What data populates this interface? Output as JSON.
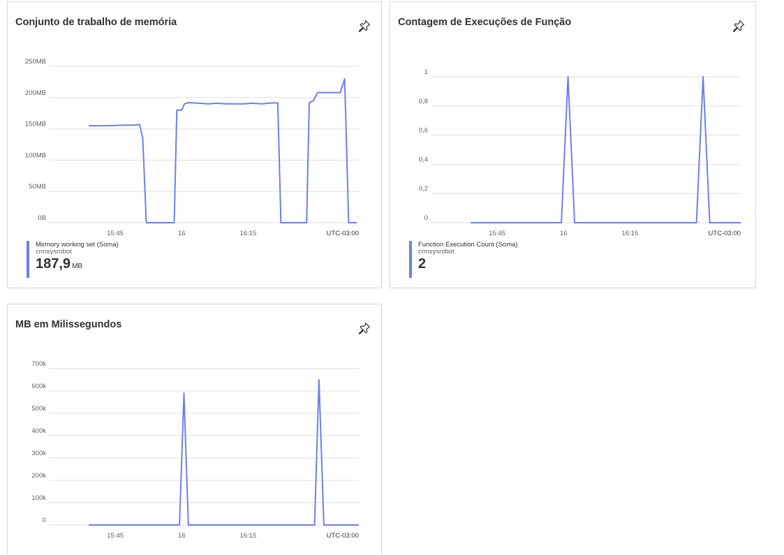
{
  "accent_color": "#6b7ff0",
  "pin_icon": "pin-icon",
  "tiles": [
    {
      "title": "Conjunto de trabalho de memória",
      "legend": {
        "series": "Memory working set (Soma)",
        "resource": "crmsysrobot",
        "value": "187,9",
        "unit": "MB"
      }
    },
    {
      "title": "Contagem de Execuções de Função",
      "legend": {
        "series": "Function Execution Count (Soma)",
        "resource": "crmsysrobot",
        "value": "2",
        "unit": ""
      }
    },
    {
      "title": "MB em Milissegundos"
    }
  ],
  "chart_data": [
    {
      "type": "line",
      "title": "Conjunto de trabalho de memória",
      "x_unit": "minutes since 15:30 (UTC-03:00)",
      "x_ticks": [
        15,
        30,
        45
      ],
      "x_tick_labels": [
        "15:45",
        "16",
        "16:15"
      ],
      "x_axis_note": "UTC-03:00",
      "ylim": [
        0,
        250
      ],
      "y_ticks": [
        0,
        50,
        100,
        150,
        200,
        250
      ],
      "y_tick_labels": [
        "0B",
        "50MB",
        "100MB",
        "150MB",
        "200MB",
        "250MB"
      ],
      "series": [
        {
          "name": "Memory working set (Soma)",
          "points": [
            [
              9,
              155
            ],
            [
              11,
              155
            ],
            [
              13,
              155
            ],
            [
              15,
              155.5
            ],
            [
              17,
              156
            ],
            [
              19,
              156
            ],
            [
              20.5,
              157
            ],
            [
              21.2,
              135
            ],
            [
              22,
              0
            ],
            [
              28.3,
              0
            ],
            [
              28.9,
              180
            ],
            [
              30,
              180
            ],
            [
              30.6,
              190
            ],
            [
              31.6,
              192
            ],
            [
              34,
              191
            ],
            [
              36,
              190
            ],
            [
              38,
              191
            ],
            [
              40,
              190
            ],
            [
              42,
              190
            ],
            [
              44,
              190
            ],
            [
              46,
              191
            ],
            [
              48,
              190
            ],
            [
              49.5,
              191
            ],
            [
              50.7,
              191.5
            ],
            [
              51.7,
              191.5
            ],
            [
              52.4,
              0
            ],
            [
              58.2,
              0
            ],
            [
              58.8,
              192
            ],
            [
              59.7,
              195
            ],
            [
              60.7,
              208
            ],
            [
              63,
              208
            ],
            [
              65.8,
              208
            ],
            [
              66.8,
              230
            ],
            [
              67.7,
              0
            ],
            [
              69.5,
              0
            ]
          ]
        }
      ]
    },
    {
      "type": "line",
      "title": "Contagem de Execuções de Função",
      "x_unit": "minutes since 15:30 (UTC-03:00)",
      "x_ticks": [
        15,
        30,
        45
      ],
      "x_tick_labels": [
        "15:45",
        "16",
        "16:15"
      ],
      "x_axis_note": "UTC-03:00",
      "ylim": [
        0,
        1
      ],
      "y_ticks": [
        0,
        0.2,
        0.4,
        0.6,
        0.8,
        1
      ],
      "y_tick_labels": [
        "0",
        "0,2",
        "0,4",
        "0,6",
        "0,8",
        "1"
      ],
      "series": [
        {
          "name": "Function Execution Count (Soma)",
          "points": [
            [
              9,
              0
            ],
            [
              29.5,
              0
            ],
            [
              31,
              1
            ],
            [
              32.5,
              0
            ],
            [
              60,
              0
            ],
            [
              61.5,
              1
            ],
            [
              63,
              0
            ],
            [
              70,
              0
            ]
          ]
        }
      ]
    },
    {
      "type": "line",
      "title": "MB em Milissegundos",
      "x_unit": "minutes since 15:30 (UTC-03:00)",
      "x_ticks": [
        15,
        30,
        45
      ],
      "x_tick_labels": [
        "15:45",
        "16",
        "16:15"
      ],
      "x_axis_note": "UTC-03:00",
      "ylim": [
        0,
        700000
      ],
      "y_ticks": [
        0,
        100000,
        200000,
        300000,
        400000,
        500000,
        600000,
        700000
      ],
      "y_tick_labels": [
        "0",
        "100k",
        "200k",
        "300k",
        "400k",
        "500k",
        "600k",
        "700k"
      ],
      "series": [
        {
          "points": [
            [
              9,
              0
            ],
            [
              29.5,
              0
            ],
            [
              30.5,
              590000
            ],
            [
              31.5,
              0
            ],
            [
              60,
              0
            ],
            [
              61,
              650000
            ],
            [
              62.1,
              0
            ],
            [
              70,
              0
            ]
          ]
        }
      ]
    }
  ]
}
